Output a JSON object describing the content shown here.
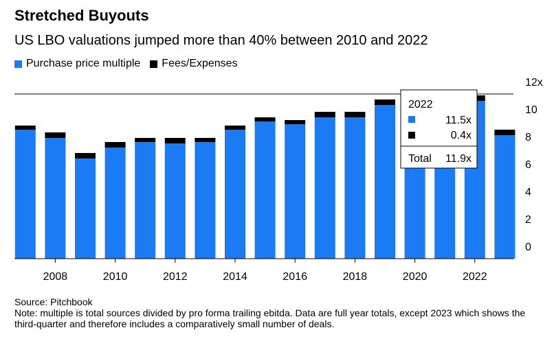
{
  "title": "Stretched Buyouts",
  "subtitle": "US LBO valuations jumped more than 40% between 2010 and 2022",
  "legend": [
    {
      "label": "Purchase price multiple",
      "color": "#1a7bf5"
    },
    {
      "label": "Fees/Expenses",
      "color": "#000000"
    }
  ],
  "tooltip": {
    "year": "2022",
    "rows": [
      {
        "value": "11.5x",
        "color": "#1a7bf5"
      },
      {
        "value": "0.4x",
        "color": "#000000"
      }
    ],
    "total_label": "Total",
    "total_value": "11.9x"
  },
  "footnote": {
    "source": "Source: Pitchbook",
    "note": "Note: multiple is total sources divided by pro forma trailing ebitda. Data are full year totals, except 2023 which shows the third-quarter and therefore includes a comparatively small number of deals."
  },
  "chart_data": {
    "type": "bar",
    "stacked": true,
    "categories": [
      "2007",
      "2008",
      "2009",
      "2010",
      "2011",
      "2012",
      "2013",
      "2014",
      "2015",
      "2016",
      "2017",
      "2018",
      "2019",
      "2020",
      "2021",
      "2022",
      "2023"
    ],
    "series": [
      {
        "name": "Purchase price multiple",
        "color": "#1a7bf5",
        "values": [
          9.4,
          8.8,
          7.3,
          8.1,
          8.5,
          8.4,
          8.5,
          9.4,
          10.0,
          9.8,
          10.3,
          10.3,
          11.2,
          10.7,
          10.8,
          11.5,
          9.0
        ]
      },
      {
        "name": "Fees/Expenses",
        "color": "#000000",
        "values": [
          0.3,
          0.4,
          0.4,
          0.4,
          0.3,
          0.4,
          0.3,
          0.3,
          0.3,
          0.3,
          0.4,
          0.4,
          0.4,
          0.4,
          0.4,
          0.4,
          0.4
        ]
      }
    ],
    "x_tick_labels": [
      "2008",
      "2010",
      "2012",
      "2014",
      "2016",
      "2018",
      "2020",
      "2022"
    ],
    "y_ticks": [
      0,
      2,
      4,
      6,
      8,
      10,
      12
    ],
    "y_tick_suffix_top": "x",
    "ylim": [
      0,
      12
    ],
    "legend_position": "top-left",
    "grid": false
  }
}
